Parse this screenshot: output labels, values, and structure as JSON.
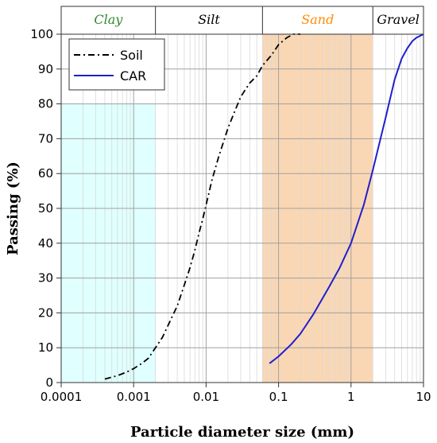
{
  "chart_data": {
    "type": "line",
    "x_scale": "log",
    "xlabel": "Particle diameter size (mm)",
    "ylabel": "Passing (%)",
    "xlim": [
      0.0001,
      10
    ],
    "ylim": [
      0,
      100
    ],
    "x_ticks": [
      "0.0001",
      "0.001",
      "0.01",
      "0.1",
      "1",
      "10"
    ],
    "y_ticks": [
      "0",
      "10",
      "20",
      "30",
      "40",
      "50",
      "60",
      "70",
      "80",
      "90",
      "100"
    ],
    "grid": true,
    "legend_position": "top-left",
    "bands": [
      {
        "label": "Clay",
        "x_range": [
          0.0001,
          0.002
        ],
        "fill": "#e0ffff",
        "shaded_below_y": 80,
        "label_color": "#2e8b2e"
      },
      {
        "label": "Silt",
        "x_range": [
          0.002,
          0.06
        ],
        "fill": "none",
        "label_color": "#000000"
      },
      {
        "label": "Sand",
        "x_range": [
          0.06,
          2
        ],
        "fill": "#fad7b4",
        "label_color": "#ff8c00"
      },
      {
        "label": "Gravel",
        "x_range": [
          2,
          10
        ],
        "fill": "none",
        "label_color": "#000000"
      }
    ],
    "series": [
      {
        "name": "Soil",
        "color": "#000000",
        "style": "dash-dot",
        "x": [
          0.0004,
          0.0006,
          0.0008,
          0.001,
          0.0013,
          0.0016,
          0.002,
          0.0025,
          0.003,
          0.004,
          0.005,
          0.006,
          0.007,
          0.008,
          0.009,
          0.01,
          0.012,
          0.015,
          0.02,
          0.025,
          0.03,
          0.04,
          0.05,
          0.06,
          0.08,
          0.1,
          0.13,
          0.16,
          0.2
        ],
        "values": [
          1,
          2,
          3,
          4,
          5.5,
          7,
          10,
          13,
          16.5,
          22,
          28,
          33,
          38,
          43,
          47,
          51,
          58,
          65,
          73,
          78,
          82,
          86,
          88,
          91,
          94,
          97,
          99,
          100,
          100
        ]
      },
      {
        "name": "CAR",
        "color": "#1f1fcf",
        "style": "solid",
        "x": [
          0.075,
          0.1,
          0.15,
          0.2,
          0.3,
          0.4,
          0.5,
          0.7,
          1,
          1.5,
          2,
          3,
          4,
          5,
          6,
          7,
          8,
          10
        ],
        "values": [
          5.5,
          7.5,
          11,
          14,
          19.5,
          24,
          27.5,
          33,
          40,
          51,
          61,
          76,
          87,
          93,
          96,
          98,
          99,
          100
        ]
      }
    ]
  }
}
